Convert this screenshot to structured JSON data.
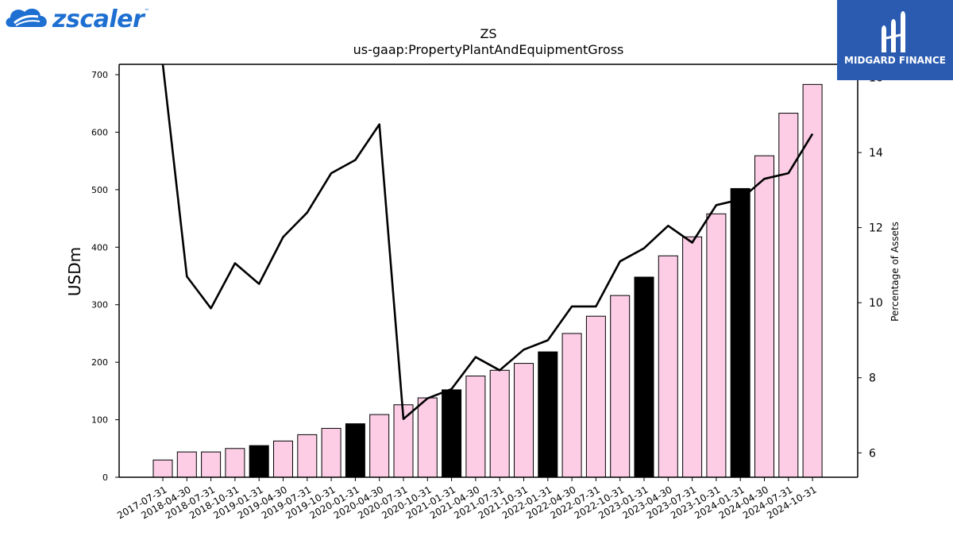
{
  "brand": {
    "left_logo_text": "zscaler",
    "left_logo_tm": "™",
    "right_logo_text": "MIDGARD FINANCE"
  },
  "colors": {
    "bar_default": "#fccde5",
    "bar_highlight": "#000000",
    "line": "#000000",
    "brand_blue": "#1d6fd1",
    "brand_panel": "#2a5bb0"
  },
  "chart_data": {
    "type": "bar",
    "title": "ZS",
    "subtitle": "us-gaap:PropertyPlantAndEquipmentGross",
    "ylabel": "USDm",
    "y2label": "Percentage of Assets",
    "ylim": [
      0,
      718
    ],
    "y2lim": [
      5.35,
      16.35
    ],
    "yticks": [
      0,
      100,
      200,
      300,
      400,
      500,
      600,
      700
    ],
    "y2ticks": [
      6,
      8,
      10,
      12,
      14,
      16
    ],
    "categories": [
      "2017-07-31",
      "2018-04-30",
      "2018-07-31",
      "2018-10-31",
      "2019-01-31",
      "2019-04-30",
      "2019-07-31",
      "2019-10-31",
      "2020-01-31",
      "2020-04-30",
      "2020-07-31",
      "2020-10-31",
      "2021-01-31",
      "2021-04-30",
      "2021-07-31",
      "2021-10-31",
      "2022-01-31",
      "2022-04-30",
      "2022-07-31",
      "2022-10-31",
      "2023-01-31",
      "2023-04-30",
      "2023-07-31",
      "2023-10-31",
      "2024-01-31",
      "2024-04-30",
      "2024-07-31",
      "2024-10-31"
    ],
    "highlighted": [
      "2019-01-31",
      "2020-01-31",
      "2021-01-31",
      "2022-01-31",
      "2023-01-31",
      "2024-01-31"
    ],
    "series": [
      {
        "type": "bar",
        "axis": "left",
        "values": [
          30,
          44,
          44,
          50,
          55,
          63,
          74,
          85,
          93,
          109,
          126,
          138,
          152,
          176,
          186,
          198,
          218,
          250,
          280,
          316,
          348,
          385,
          418,
          458,
          502,
          559,
          633,
          683
        ]
      },
      {
        "type": "line",
        "axis": "right",
        "values": [
          16.4,
          10.7,
          9.85,
          11.05,
          10.5,
          11.75,
          12.4,
          13.45,
          13.8,
          14.75,
          6.9,
          7.45,
          7.7,
          8.55,
          8.2,
          8.75,
          9.0,
          9.9,
          9.9,
          11.1,
          11.45,
          12.05,
          11.6,
          12.6,
          12.75,
          13.3,
          13.45,
          14.5
        ]
      }
    ]
  }
}
